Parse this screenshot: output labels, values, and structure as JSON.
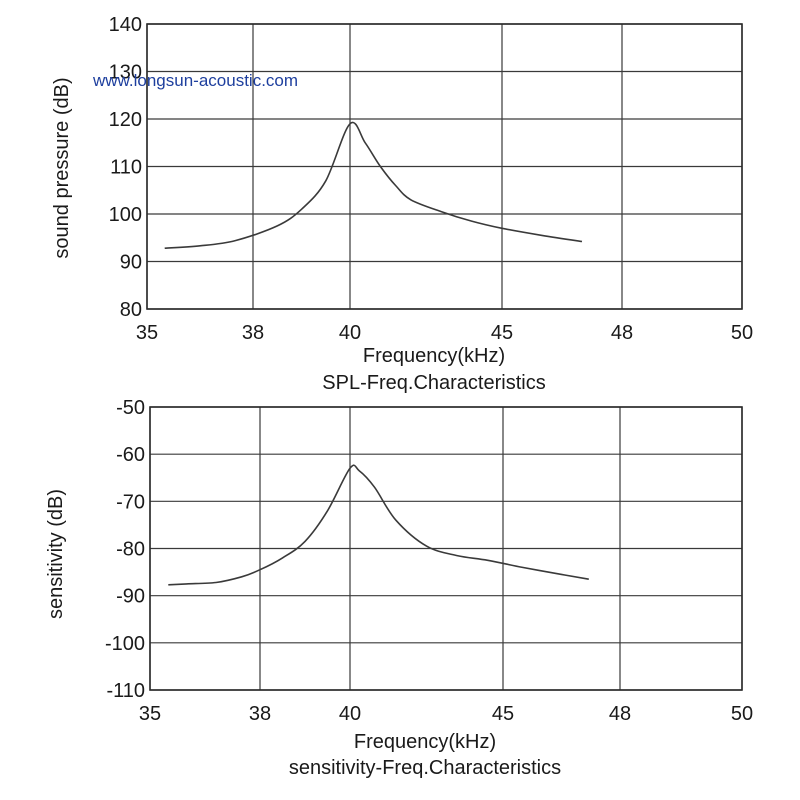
{
  "watermark": "www.longsun-acoustic.com",
  "chart_data": [
    {
      "type": "line",
      "title": "SPL-Freq.Characteristics",
      "xlabel": "Frequency(kHz)",
      "ylabel": "sound pressure (dB)",
      "x_ticks": [
        35,
        38,
        40,
        45,
        48,
        50
      ],
      "y_ticks": [
        80,
        90,
        100,
        110,
        120,
        130,
        140
      ],
      "x_tick_labels": [
        "35",
        "38",
        "40",
        "45",
        "48",
        "50"
      ],
      "y_tick_labels": [
        "80",
        "90",
        "100",
        "110",
        "120",
        "130",
        "140"
      ],
      "ylim": [
        80,
        140
      ],
      "grid": true,
      "series": [
        {
          "x": [
            35.5,
            36.5,
            37.5,
            38.5,
            39.0,
            39.5,
            40.0,
            40.5,
            41.0,
            41.5,
            42.0,
            43.0,
            44.0,
            45.0,
            46.0,
            47.0
          ],
          "y": [
            92.8,
            93.3,
            94.4,
            97.5,
            101.0,
            107.0,
            119.0,
            115.0,
            110.0,
            106.0,
            103.0,
            100.5,
            98.5,
            97.0,
            95.5,
            94.2
          ]
        }
      ]
    },
    {
      "type": "line",
      "title": "sensitivity-Freq.Characteristics",
      "xlabel": "Frequency(kHz)",
      "ylabel": "sensitivity (dB)",
      "x_ticks": [
        35,
        38,
        40,
        45,
        48,
        50
      ],
      "y_ticks": [
        -110,
        -100,
        -90,
        -80,
        -70,
        -60,
        -50
      ],
      "x_tick_labels": [
        "35",
        "38",
        "40",
        "45",
        "48",
        "50"
      ],
      "y_tick_labels": [
        "-110",
        "-100",
        "-90",
        "-80",
        "-70",
        "-60",
        "-50"
      ],
      "ylim": [
        -110,
        -50
      ],
      "grid": true,
      "series": [
        {
          "x": [
            35.5,
            36.0,
            36.8,
            37.5,
            38.0,
            38.5,
            39.0,
            39.5,
            40.0,
            40.3,
            40.8,
            41.5,
            42.5,
            43.5,
            44.5,
            45.5,
            46.5,
            47.2
          ],
          "y": [
            -87.7,
            -87.5,
            -87.2,
            -86.0,
            -84.5,
            -82.0,
            -78.5,
            -72.0,
            -63.0,
            -63.5,
            -67.0,
            -74.0,
            -79.5,
            -81.5,
            -82.5,
            -84.0,
            -85.5,
            -86.5
          ]
        }
      ]
    }
  ]
}
